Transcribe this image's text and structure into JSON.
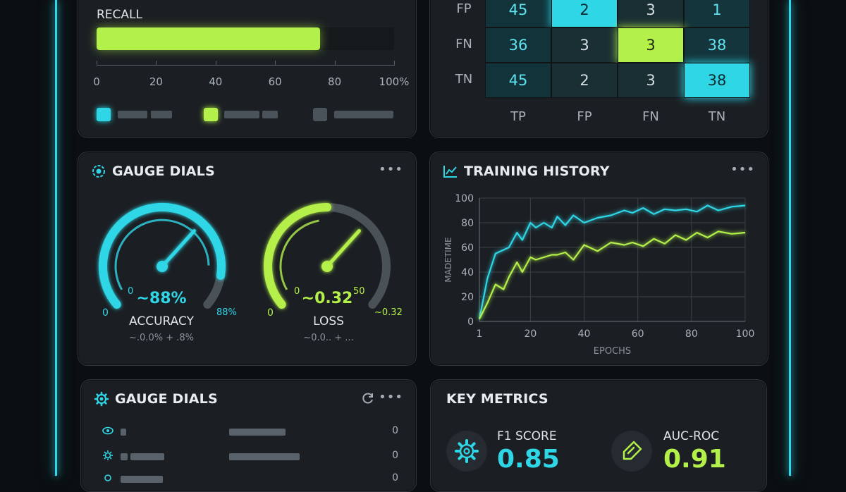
{
  "colors": {
    "cyan": "#2fd6e6",
    "lime": "#b4f04a",
    "panel": "#1b1f23",
    "grey": "#4b535a"
  },
  "recall": {
    "label": "RECALL",
    "value_percent": 75,
    "axis_ticks": [
      "0",
      "20",
      "40",
      "60",
      "80",
      "100%"
    ]
  },
  "confusion": {
    "row_labels": [
      "FP",
      "FN",
      "TN"
    ],
    "col_labels": [
      "TP",
      "FP",
      "FN",
      "TN"
    ],
    "cells": [
      [
        "45",
        "2",
        "3",
        "1"
      ],
      [
        "36",
        "3",
        "3",
        "38"
      ],
      [
        "45",
        "2",
        "3",
        "38"
      ]
    ]
  },
  "gauges_panel": {
    "title": "GAUGE DIALS",
    "menu": "•••",
    "accuracy": {
      "value": "~88%",
      "name": "ACCURACY",
      "min": "0",
      "min_inner": "0",
      "max": "88%",
      "note": "~.0.0% + .8%",
      "level": 0.88
    },
    "loss": {
      "value": "~0.32",
      "name": "LOSS",
      "min": "0",
      "min_inner": "0",
      "max_inner": "50",
      "max": "~0.32",
      "note": "~0.0.. + ...",
      "level": 0.5
    }
  },
  "history": {
    "title": "TRAINING HISTORY",
    "menu": "•••"
  },
  "chart_data": {
    "type": "line",
    "xlabel": "EPOCHS",
    "ylabel": "MADETIME",
    "x_ticks": [
      "1",
      "20",
      "40",
      "60",
      "80",
      "100"
    ],
    "y_ticks": [
      "0",
      "20",
      "40",
      "60",
      "80",
      "100"
    ],
    "xlim": [
      1,
      100
    ],
    "ylim": [
      0,
      100
    ],
    "grid": true,
    "series": [
      {
        "color": "#2fd6e6",
        "x": [
          1,
          4,
          7,
          10,
          12,
          15,
          17,
          20,
          22,
          25,
          28,
          30,
          33,
          36,
          40,
          45,
          50,
          55,
          58,
          62,
          66,
          70,
          74,
          78,
          82,
          86,
          90,
          95,
          100
        ],
        "y": [
          2,
          35,
          55,
          58,
          60,
          72,
          66,
          80,
          76,
          80,
          76,
          85,
          78,
          86,
          80,
          84,
          86,
          90,
          88,
          92,
          87,
          91,
          90,
          91,
          89,
          94,
          90,
          93,
          94
        ]
      },
      {
        "color": "#b4f04a",
        "x": [
          1,
          4,
          7,
          10,
          12,
          15,
          17,
          20,
          22,
          25,
          28,
          30,
          33,
          36,
          40,
          45,
          50,
          55,
          58,
          62,
          66,
          70,
          74,
          78,
          82,
          86,
          90,
          95,
          100
        ],
        "y": [
          2,
          15,
          30,
          26,
          36,
          48,
          40,
          52,
          50,
          52,
          54,
          54,
          56,
          50,
          62,
          57,
          64,
          62,
          64,
          61,
          67,
          63,
          70,
          66,
          72,
          68,
          73,
          71,
          72
        ]
      }
    ]
  },
  "list_panel": {
    "title": "GAUGE DIALS",
    "menu": "•••",
    "rows": [
      {
        "icon": "eye-icon",
        "value": "0"
      },
      {
        "icon": "gear-small-icon",
        "value": "0"
      },
      {
        "icon": "node-icon",
        "value": "0"
      }
    ]
  },
  "key_metrics": {
    "title": "KEY METRICS",
    "f1": {
      "label": "F1 SCORE",
      "value": "0.85",
      "icon": "gear-icon"
    },
    "auc": {
      "label": "AUC-ROC",
      "value": "0.91",
      "icon": "tag-icon"
    }
  }
}
